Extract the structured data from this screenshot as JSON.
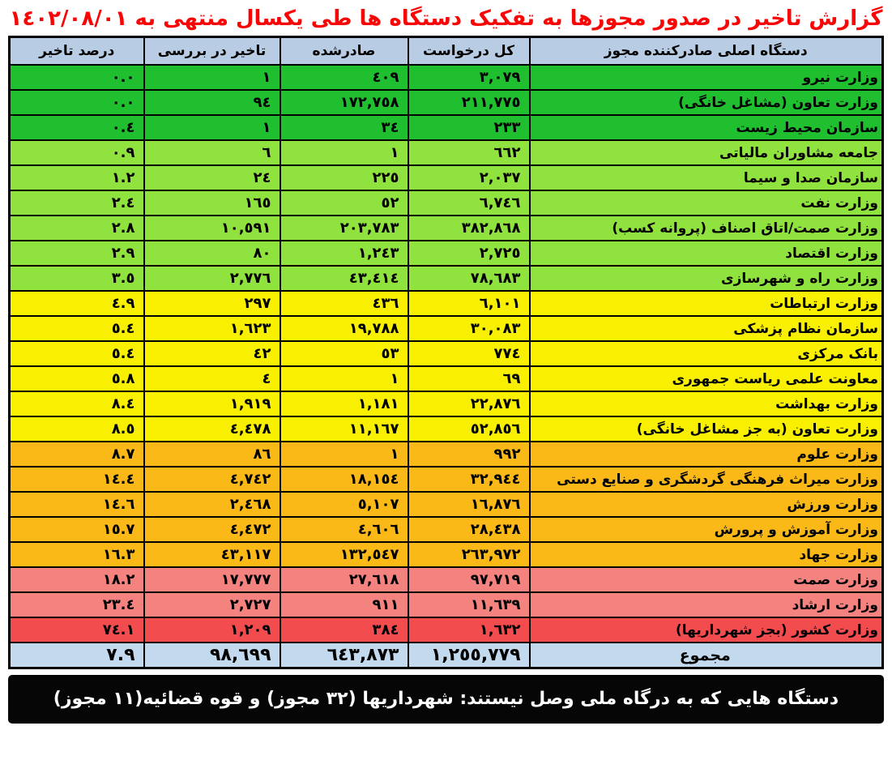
{
  "title": "گزارش تاخیر در صدور مجوزها به تفکیک دستگاه ها طی یکسال منتهی به ١٤٠٢/٠٨/٠١",
  "colors": {
    "title_red": "#F90505",
    "header_blue": "#B8CCE4",
    "total_blue": "#C2D9EE",
    "green": "#1FBF2F",
    "light_green": "#90E33E",
    "yellow": "#F8F000",
    "orange": "#FBB917",
    "salmon": "#F4827F",
    "red": "#F34C4F",
    "footer_bg": "#060606",
    "footer_text": "#FFFFFF",
    "border": "#000000"
  },
  "table": {
    "headers": [
      "دستگاه اصلی صادرکننده مجوز",
      "کل درخواست",
      "صادرشده",
      "تاخیر در بررسی",
      "درصد تاخیر"
    ],
    "rows": [
      {
        "agency": "وزارت نیرو",
        "total_requests": "٣,٠٧٩",
        "issued": "٤٠٩",
        "review_delay": "١",
        "delay_percent": "٠.٠",
        "tier": "green"
      },
      {
        "agency": "وزارت تعاون (مشاغل خانگی)",
        "total_requests": "٢١١,٧٧٥",
        "issued": "١٧٢,٧٥٨",
        "review_delay": "٩٤",
        "delay_percent": "٠.٠",
        "tier": "green"
      },
      {
        "agency": "سازمان محیط زیست",
        "total_requests": "٢٣٣",
        "issued": "٣٤",
        "review_delay": "١",
        "delay_percent": "٠.٤",
        "tier": "green"
      },
      {
        "agency": "جامعه مشاوران مالیاتی",
        "total_requests": "٦٦٢",
        "issued": "١",
        "review_delay": "٦",
        "delay_percent": "٠.٩",
        "tier": "light_green"
      },
      {
        "agency": "سازمان صدا و سیما",
        "total_requests": "٢,٠٣٧",
        "issued": "٢٢٥",
        "review_delay": "٢٤",
        "delay_percent": "١.٢",
        "tier": "light_green"
      },
      {
        "agency": "وزارت نفت",
        "total_requests": "٦,٧٤٦",
        "issued": "٥٢",
        "review_delay": "١٦٥",
        "delay_percent": "٢.٤",
        "tier": "light_green"
      },
      {
        "agency": "وزارت صمت/اتاق اصناف (پروانه کسب)",
        "total_requests": "٣٨٢,٨٦٨",
        "issued": "٢٠٣,٧٨٣",
        "review_delay": "١٠,٥٩١",
        "delay_percent": "٢.٨",
        "tier": "light_green"
      },
      {
        "agency": "وزارت اقتصاد",
        "total_requests": "٢,٧٢٥",
        "issued": "١,٢٤٣",
        "review_delay": "٨٠",
        "delay_percent": "٢.٩",
        "tier": "light_green"
      },
      {
        "agency": "وزارت راه و شهرسازی",
        "total_requests": "٧٨,٦٨٣",
        "issued": "٤٣,٤١٤",
        "review_delay": "٢,٧٧٦",
        "delay_percent": "٣.٥",
        "tier": "light_green"
      },
      {
        "agency": "وزارت ارتباطات",
        "total_requests": "٦,١٠١",
        "issued": "٤٣٦",
        "review_delay": "٢٩٧",
        "delay_percent": "٤.٩",
        "tier": "yellow"
      },
      {
        "agency": "سازمان نظام پزشکی",
        "total_requests": "٣٠,٠٨٣",
        "issued": "١٩,٧٨٨",
        "review_delay": "١,٦٢٣",
        "delay_percent": "٥.٤",
        "tier": "yellow"
      },
      {
        "agency": "بانک مرکزی",
        "total_requests": "٧٧٤",
        "issued": "٥٣",
        "review_delay": "٤٢",
        "delay_percent": "٥.٤",
        "tier": "yellow"
      },
      {
        "agency": "معاونت علمی ریاست جمهوری",
        "total_requests": "٦٩",
        "issued": "١",
        "review_delay": "٤",
        "delay_percent": "٥.٨",
        "tier": "yellow"
      },
      {
        "agency": "وزارت بهداشت",
        "total_requests": "٢٢,٨٧٦",
        "issued": "١,١٨١",
        "review_delay": "١,٩١٩",
        "delay_percent": "٨.٤",
        "tier": "yellow"
      },
      {
        "agency": "وزارت تعاون (به جز مشاغل خانگی)",
        "total_requests": "٥٢,٨٥٦",
        "issued": "١١,١٦٧",
        "review_delay": "٤,٤٧٨",
        "delay_percent": "٨.٥",
        "tier": "yellow"
      },
      {
        "agency": "وزارت علوم",
        "total_requests": "٩٩٢",
        "issued": "١",
        "review_delay": "٨٦",
        "delay_percent": "٨.٧",
        "tier": "orange"
      },
      {
        "agency": "وزارت میراث فرهنگی گردشگری و صنایع دستی",
        "total_requests": "٣٢,٩٤٤",
        "issued": "١٨,١٥٤",
        "review_delay": "٤,٧٤٢",
        "delay_percent": "١٤.٤",
        "tier": "orange"
      },
      {
        "agency": "وزارت ورزش",
        "total_requests": "١٦,٨٧٦",
        "issued": "٥,١٠٧",
        "review_delay": "٢,٤٦٨",
        "delay_percent": "١٤.٦",
        "tier": "orange"
      },
      {
        "agency": "وزارت آموزش و پرورش",
        "total_requests": "٢٨,٤٣٨",
        "issued": "٤,٦٠٦",
        "review_delay": "٤,٤٧٢",
        "delay_percent": "١٥.٧",
        "tier": "orange"
      },
      {
        "agency": "وزارت جهاد",
        "total_requests": "٢٦٣,٩٧٢",
        "issued": "١٣٢,٥٤٧",
        "review_delay": "٤٣,١١٧",
        "delay_percent": "١٦.٣",
        "tier": "orange"
      },
      {
        "agency": "وزارت صمت",
        "total_requests": "٩٧,٧١٩",
        "issued": "٢٧,٦١٨",
        "review_delay": "١٧,٧٧٧",
        "delay_percent": "١٨.٢",
        "tier": "salmon"
      },
      {
        "agency": "وزارت ارشاد",
        "total_requests": "١١,٦٣٩",
        "issued": "٩١١",
        "review_delay": "٢,٧٢٧",
        "delay_percent": "٢٣.٤",
        "tier": "salmon"
      },
      {
        "agency": "وزارت کشور (بجز شهرداریها)",
        "total_requests": "١,٦٣٢",
        "issued": "٣٨٤",
        "review_delay": "١,٢٠٩",
        "delay_percent": "٧٤.١",
        "tier": "red"
      }
    ],
    "total": {
      "label": "مجموع",
      "total_requests": "١,٢٥٥,٧٧٩",
      "issued": "٦٤٣,٨٧٣",
      "review_delay": "٩٨,٦٩٩",
      "delay_percent": "٧.٩"
    }
  },
  "footer": {
    "note": "دستگاه هایی که به درگاه ملی وصل نیستند:  شهرداریها (٣٢ مجوز) و قوه قضائیه(١١ مجوز)"
  },
  "chart_data": {
    "type": "table",
    "title": "گزارش تاخیر در صدور مجوزها به تفکیک دستگاه ها طی یکسال منتهی به 1402/08/01",
    "columns": [
      "دستگاه اصلی صادرکننده مجوز",
      "کل درخواست",
      "صادرشده",
      "تاخیر در بررسی",
      "درصد تاخیر"
    ],
    "rows": [
      [
        "وزارت نیرو",
        3079,
        409,
        1,
        0.0
      ],
      [
        "وزارت تعاون (مشاغل خانگی)",
        211775,
        172758,
        94,
        0.0
      ],
      [
        "سازمان محیط زیست",
        233,
        34,
        1,
        0.4
      ],
      [
        "جامعه مشاوران مالیاتی",
        662,
        1,
        6,
        0.9
      ],
      [
        "سازمان صدا و سیما",
        2037,
        225,
        24,
        1.2
      ],
      [
        "وزارت نفت",
        6746,
        52,
        165,
        2.4
      ],
      [
        "وزارت صمت/اتاق اصناف (پروانه کسب)",
        382868,
        203783,
        10591,
        2.8
      ],
      [
        "وزارت اقتصاد",
        2725,
        1243,
        80,
        2.9
      ],
      [
        "وزارت راه و شهرسازی",
        78683,
        43414,
        2776,
        3.5
      ],
      [
        "وزارت ارتباطات",
        6101,
        436,
        297,
        4.9
      ],
      [
        "سازمان نظام پزشکی",
        30083,
        19788,
        1623,
        5.4
      ],
      [
        "بانک مرکزی",
        774,
        53,
        42,
        5.4
      ],
      [
        "معاونت علمی ریاست جمهوری",
        69,
        1,
        4,
        5.8
      ],
      [
        "وزارت بهداشت",
        22876,
        1181,
        1919,
        8.4
      ],
      [
        "وزارت تعاون (به جز مشاغل خانگی)",
        52856,
        11167,
        4478,
        8.5
      ],
      [
        "وزارت علوم",
        992,
        1,
        86,
        8.7
      ],
      [
        "وزارت میراث فرهنگی گردشگری و صنایع دستی",
        32944,
        18154,
        4742,
        14.4
      ],
      [
        "وزارت ورزش",
        16876,
        5107,
        2468,
        14.6
      ],
      [
        "وزارت آموزش و پرورش",
        28438,
        4606,
        4472,
        15.7
      ],
      [
        "وزارت جهاد",
        263972,
        132547,
        43117,
        16.3
      ],
      [
        "وزارت صمت",
        97719,
        27618,
        17777,
        18.2
      ],
      [
        "وزارت ارشاد",
        11639,
        911,
        2727,
        23.4
      ],
      [
        "وزارت کشور (بجز شهرداریها)",
        1632,
        384,
        1209,
        74.1
      ]
    ],
    "total_row": [
      "مجموع",
      1255779,
      643873,
      98699,
      7.9
    ],
    "row_color_tiers": [
      "green",
      "green",
      "green",
      "light_green",
      "light_green",
      "light_green",
      "light_green",
      "light_green",
      "light_green",
      "yellow",
      "yellow",
      "yellow",
      "yellow",
      "yellow",
      "yellow",
      "orange",
      "orange",
      "orange",
      "orange",
      "orange",
      "salmon",
      "salmon",
      "red"
    ]
  }
}
